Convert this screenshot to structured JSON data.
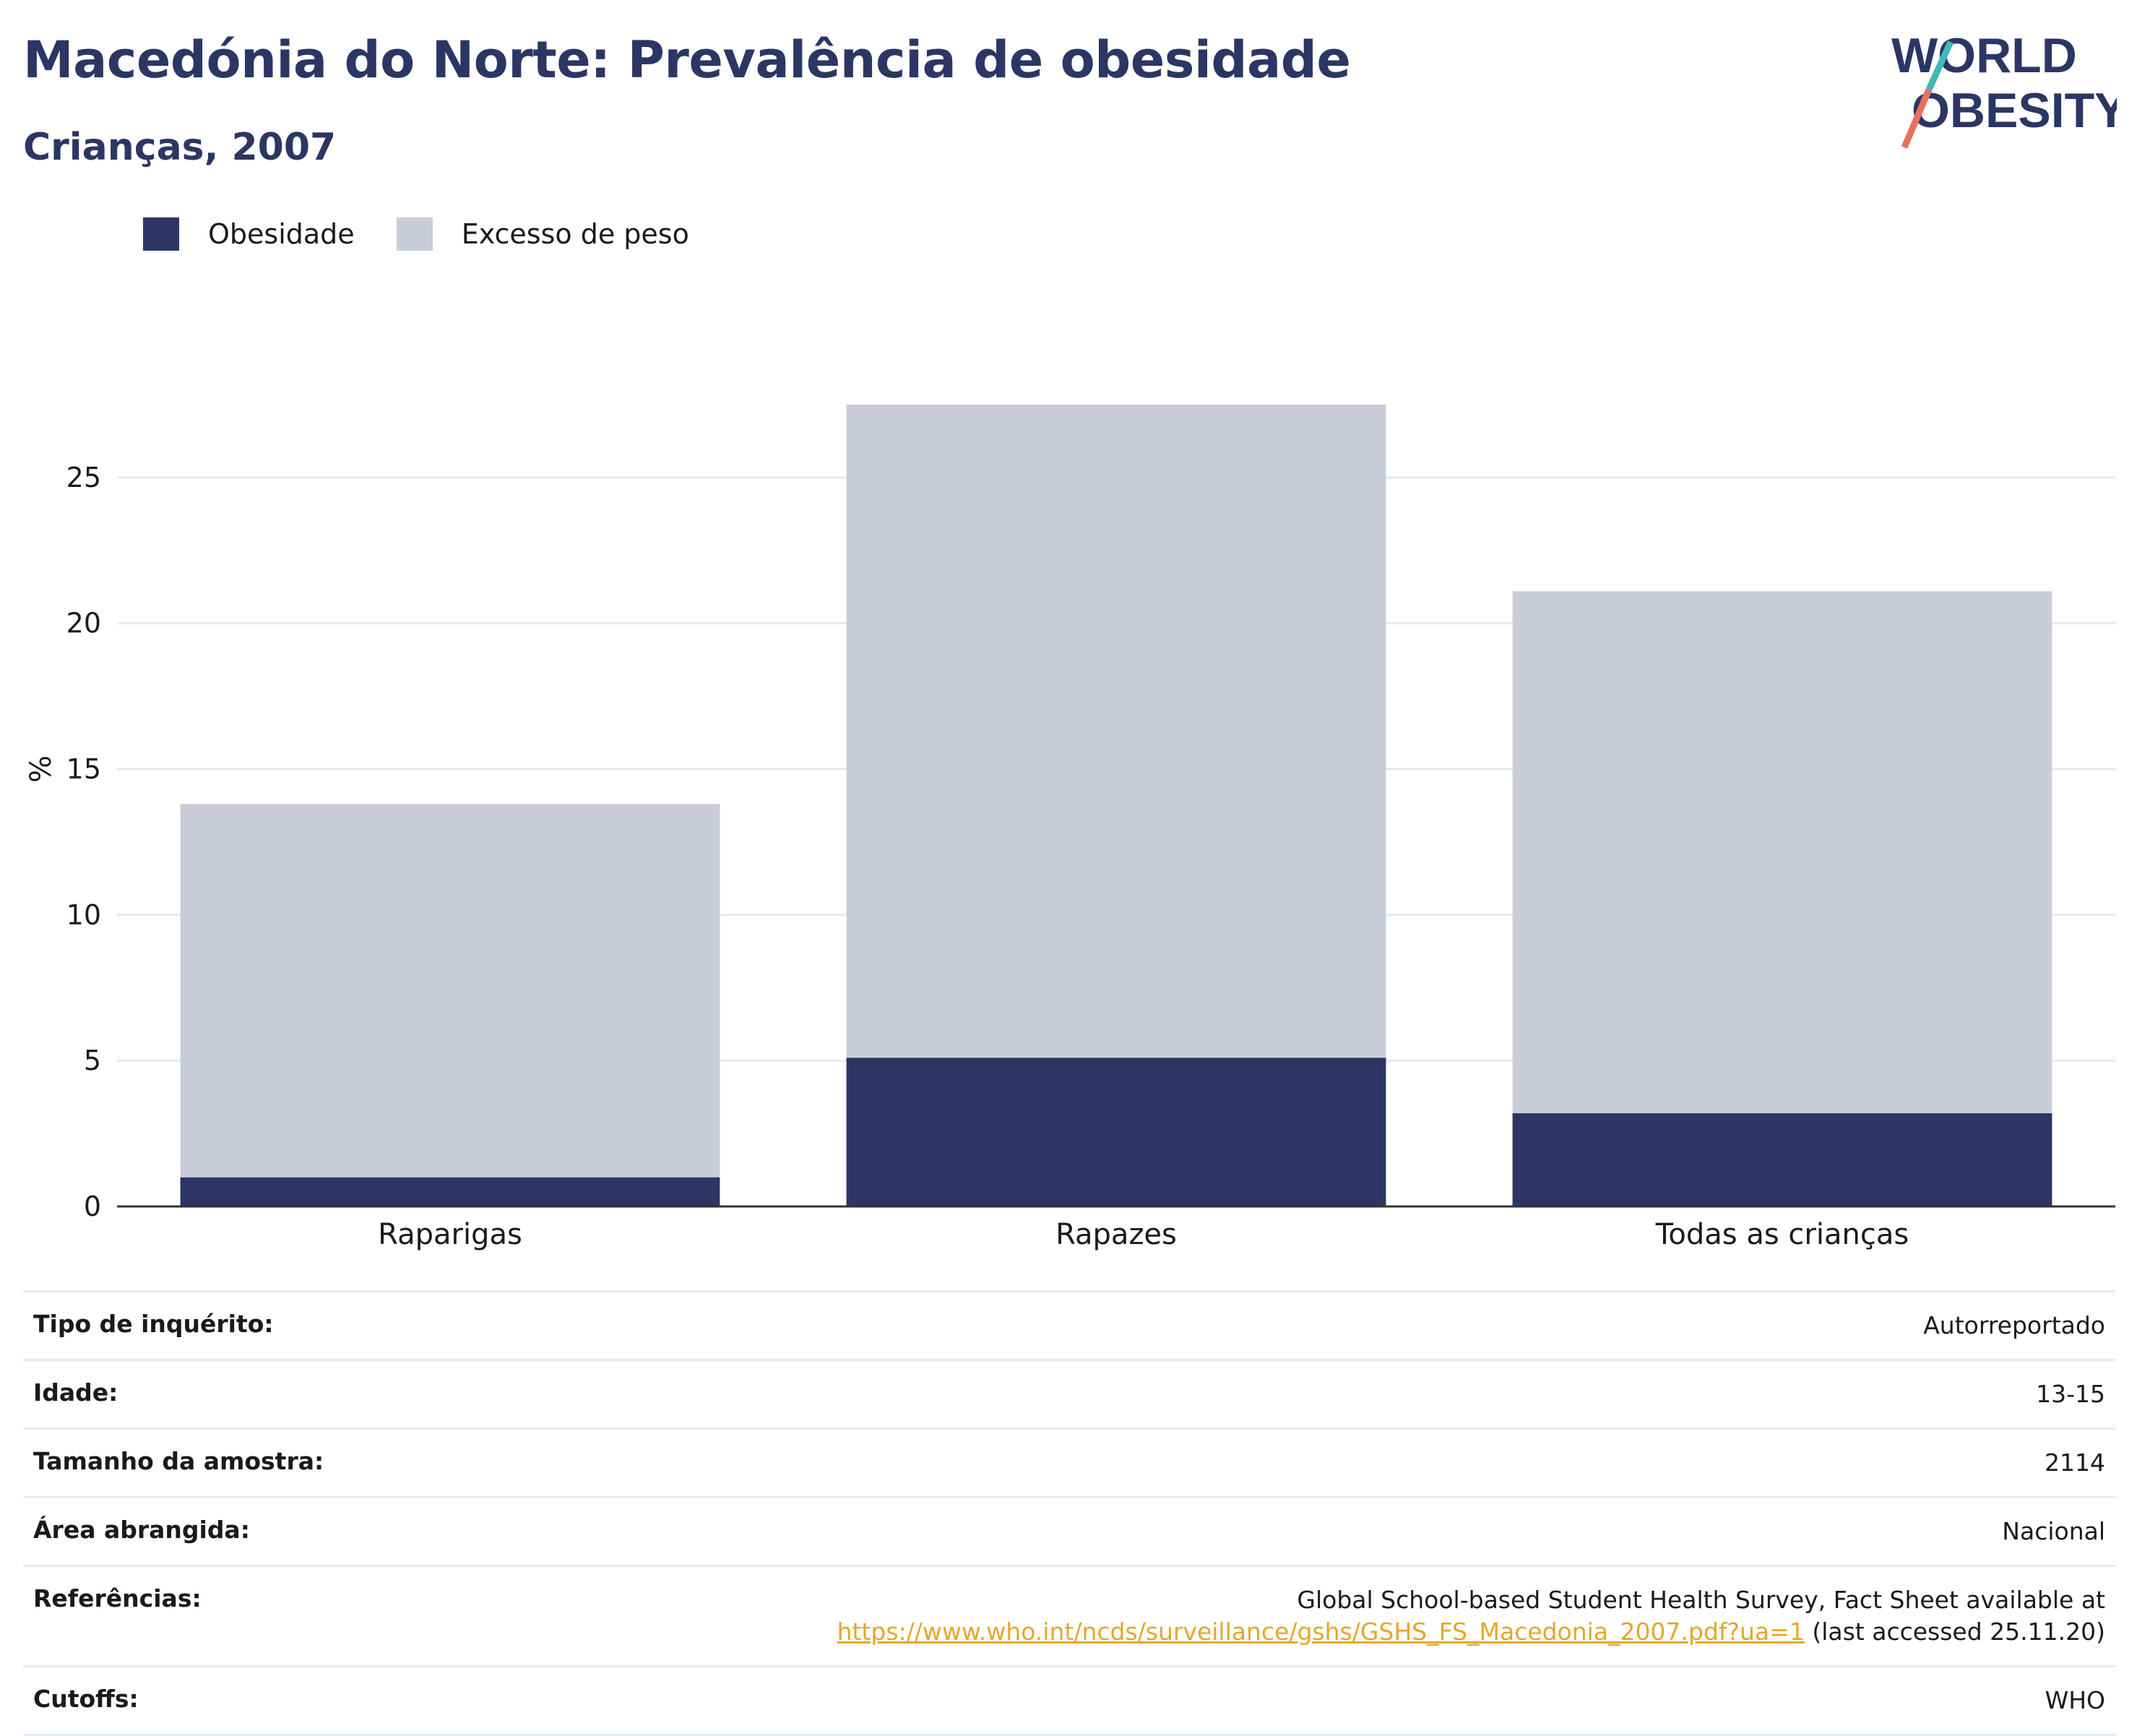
{
  "header": {
    "title": "Macedónia do Norte: Prevalência de obesidade",
    "subtitle": "Crianças, 2007"
  },
  "logo": {
    "line1": "WORLD",
    "line2": "OBESITY"
  },
  "legend": {
    "items": [
      {
        "label": "Obesidade",
        "color": "#2b3664"
      },
      {
        "label": "Excesso de peso",
        "color": "#cacdd8"
      }
    ]
  },
  "chart_data": {
    "type": "bar",
    "stacked": true,
    "categories": [
      "Raparigas",
      "Rapazes",
      "Todas as crianças"
    ],
    "series": [
      {
        "name": "Obesidade",
        "values": [
          1.0,
          5.1,
          3.2
        ],
        "color": "#2b3664"
      },
      {
        "name": "Excesso de peso",
        "values": [
          12.8,
          22.4,
          17.9
        ],
        "color": "#cacdd8"
      }
    ],
    "ylabel": "%",
    "ylim": [
      0,
      27.5
    ],
    "yticks": [
      0,
      5,
      10,
      15,
      20,
      25
    ],
    "grid": true,
    "legend_position": "top-left"
  },
  "info": {
    "rows": [
      {
        "key": "Tipo de inquérito:",
        "value": "Autorreportado"
      },
      {
        "key": "Idade:",
        "value": "13-15"
      },
      {
        "key": "Tamanho da amostra:",
        "value": "2114"
      },
      {
        "key": "Área abrangida:",
        "value": "Nacional"
      },
      {
        "key": "Referências:",
        "value": "Global School-based Student Health Survey, Fact Sheet available at",
        "link": "https://www.who.int/ncds/surveillance/gshs/GSHS_FS_Macedonia_2007.pdf?ua=1",
        "suffix": " (last accessed 25.11.20)"
      },
      {
        "key": "Cutoffs:",
        "value": "WHO"
      }
    ]
  }
}
